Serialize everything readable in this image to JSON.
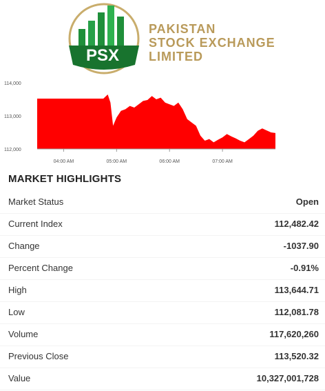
{
  "header": {
    "logo_initials": "PSX",
    "logo_line1": "PAKISTAN",
    "logo_line2": "STOCK EXCHANGE",
    "logo_line3": "LIMITED",
    "colors": {
      "green": "#1f8f3a",
      "gold": "#b99a5a"
    }
  },
  "chart_data": {
    "type": "area",
    "title": "",
    "xlabel": "",
    "ylabel": "",
    "ylim": [
      112000,
      114000
    ],
    "y_ticks": [
      "114,000",
      "113,000",
      "112,000"
    ],
    "x_ticks": [
      "04:00 AM",
      "05:00 AM",
      "06:00 AM",
      "07:00 AM"
    ],
    "color": "#ff0000",
    "series": [
      {
        "x": [
          "03:30",
          "03:40",
          "03:50",
          "04:00",
          "04:10",
          "04:20",
          "04:30",
          "04:40",
          "04:45",
          "04:50",
          "04:53",
          "04:56",
          "05:00",
          "05:05",
          "05:10",
          "05:15",
          "05:20",
          "05:25",
          "05:30",
          "05:35",
          "05:40",
          "05:45",
          "05:50",
          "05:55",
          "06:00",
          "06:05",
          "06:10",
          "06:15",
          "06:20",
          "06:25",
          "06:30",
          "06:35",
          "06:40",
          "06:45",
          "06:50",
          "06:55",
          "07:00",
          "07:05",
          "07:10",
          "07:15",
          "07:20",
          "07:25",
          "07:30",
          "07:35",
          "07:40",
          "07:45",
          "07:50",
          "07:55",
          "08:00"
        ],
        "values": [
          113520,
          113520,
          113520,
          113520,
          113520,
          113520,
          113520,
          113520,
          113520,
          113645,
          113400,
          112700,
          112950,
          113150,
          113200,
          113300,
          113250,
          113350,
          113450,
          113480,
          113600,
          113500,
          113550,
          113400,
          113350,
          113300,
          113400,
          113200,
          112900,
          112800,
          112700,
          112400,
          112250,
          112300,
          112200,
          112280,
          112350,
          112450,
          112380,
          112320,
          112250,
          112200,
          112300,
          112400,
          112550,
          112620,
          112560,
          112500,
          112482
        ]
      }
    ]
  },
  "highlights": {
    "title": "MARKET HIGHLIGHTS",
    "rows": [
      {
        "label": "Market Status",
        "value": "Open"
      },
      {
        "label": "Current Index",
        "value": "112,482.42"
      },
      {
        "label": "Change",
        "value": "-1037.90"
      },
      {
        "label": "Percent Change",
        "value": "-0.91%"
      },
      {
        "label": "High",
        "value": "113,644.71"
      },
      {
        "label": "Low",
        "value": "112,081.78"
      },
      {
        "label": "Volume",
        "value": "117,620,260"
      },
      {
        "label": "Previous Close",
        "value": "113,520.32"
      },
      {
        "label": "Value",
        "value": "10,327,001,728"
      }
    ]
  }
}
